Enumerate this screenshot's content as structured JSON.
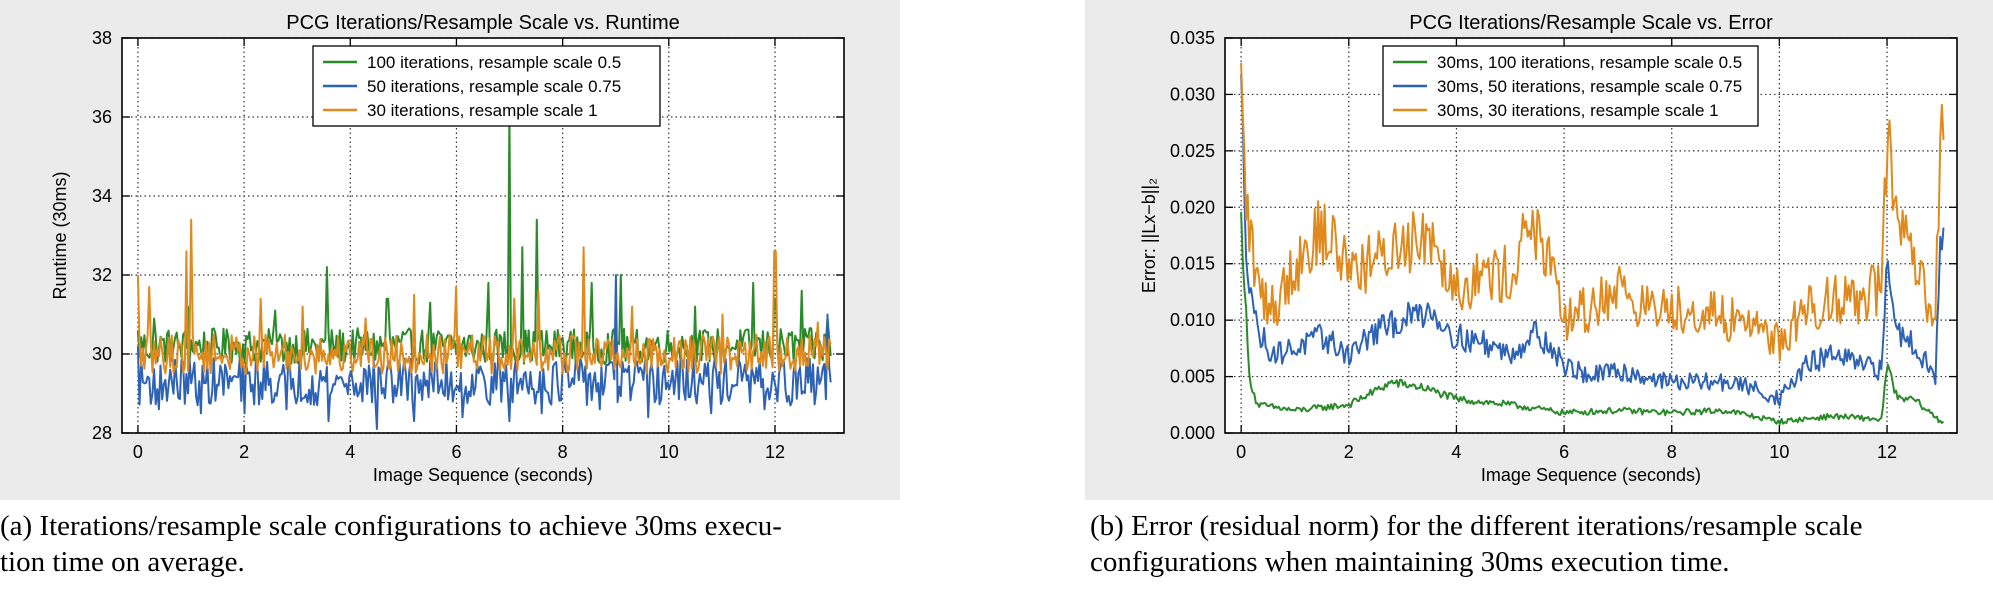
{
  "chart_data": [
    {
      "type": "line",
      "title": "PCG Iterations/Resample Scale vs. Runtime",
      "xlabel": "Image Sequence (seconds)",
      "ylabel": "Runtime (30ms)",
      "xlim": [
        -0.3,
        13.3
      ],
      "ylim": [
        28,
        38
      ],
      "xticks": [
        0,
        2,
        4,
        6,
        8,
        10,
        12
      ],
      "yticks": [
        28,
        30,
        32,
        34,
        36,
        38
      ],
      "grid": true,
      "legend": "top-center",
      "series": [
        {
          "name": "100 iterations, resample scale 0.5",
          "color": "#2a8a2a",
          "base": 30.2,
          "noise": 0.45,
          "x": [
            0,
            0.3,
            0.95,
            1.7,
            2.6,
            3.55,
            4.7,
            5.5,
            6.6,
            7.0,
            7.25,
            7.5,
            8.55,
            9.1,
            10.5,
            11.6,
            12.0,
            12.5,
            13.0
          ],
          "y": [
            30.6,
            30.9,
            31.2,
            30.4,
            31.1,
            32.2,
            31.4,
            31.3,
            31.8,
            36.1,
            32.7,
            33.4,
            31.8,
            32.0,
            31.2,
            31.8,
            31.4,
            31.6,
            30.9
          ]
        },
        {
          "name": "50 iterations, resample scale 0.75",
          "color": "#2d62b5",
          "base": 29.3,
          "noise": 0.6,
          "x": [
            0,
            0.4,
            1.2,
            2.0,
            2.8,
            3.6,
            4.5,
            5.2,
            6.1,
            7.0,
            7.6,
            8.7,
            9.0,
            9.6,
            10.8,
            11.8,
            12.3,
            13.0
          ],
          "y": [
            30.2,
            28.6,
            28.5,
            28.5,
            28.6,
            28.3,
            28.1,
            28.3,
            28.4,
            28.3,
            28.5,
            28.6,
            32.0,
            28.4,
            28.5,
            28.6,
            28.7,
            31.0
          ]
        },
        {
          "name": "30 iterations, resample scale 1",
          "color": "#e08a1e",
          "base": 30.0,
          "noise": 0.5,
          "x": [
            0,
            0.2,
            0.9,
            1.0,
            2.3,
            3.1,
            4.3,
            5.2,
            6.0,
            7.1,
            7.55,
            8.4,
            9.3,
            11.0,
            12.0,
            12.8
          ],
          "y": [
            32.0,
            31.7,
            32.6,
            33.4,
            31.4,
            31.2,
            30.9,
            31.5,
            31.7,
            31.4,
            31.6,
            32.7,
            31.2,
            31.0,
            32.6,
            30.8
          ]
        }
      ]
    },
    {
      "type": "line",
      "title": "PCG Iterations/Resample Scale vs. Error",
      "xlabel": "Image Sequence (seconds)",
      "ylabel": "Error: ||Lx−b||₂",
      "xlim": [
        -0.3,
        13.3
      ],
      "ylim": [
        0.0,
        0.035
      ],
      "xticks": [
        0,
        2,
        4,
        6,
        8,
        10,
        12
      ],
      "yticks": [
        0.0,
        0.005,
        0.01,
        0.015,
        0.02,
        0.025,
        0.03,
        0.035
      ],
      "ytick_format": 3,
      "grid": true,
      "legend": "top-center",
      "series": [
        {
          "name": "30ms, 100 iterations, resample scale 0.5",
          "color": "#2a8a2a",
          "noise": 0.0006,
          "x": [
            0,
            0.15,
            0.3,
            1.0,
            2.0,
            2.8,
            3.4,
            4.0,
            5.0,
            6.0,
            7.0,
            8.0,
            9.0,
            10.0,
            11.0,
            11.9,
            12.0,
            12.2,
            12.5,
            13.0
          ],
          "y": [
            0.019,
            0.005,
            0.0025,
            0.002,
            0.0025,
            0.0045,
            0.004,
            0.003,
            0.0025,
            0.0018,
            0.002,
            0.0018,
            0.002,
            0.001,
            0.0015,
            0.0012,
            0.006,
            0.003,
            0.003,
            0.001
          ]
        },
        {
          "name": "30ms, 50 iterations, resample scale 0.75",
          "color": "#2d62b5",
          "noise": 0.0012,
          "x": [
            0,
            0.1,
            0.3,
            0.6,
            1.0,
            1.5,
            2.0,
            2.5,
            3.0,
            3.5,
            4.0,
            4.5,
            5.0,
            5.5,
            6.0,
            6.5,
            7.0,
            7.5,
            8.0,
            8.5,
            9.0,
            9.5,
            10.0,
            10.5,
            11.0,
            11.5,
            11.9,
            12.0,
            12.2,
            12.5,
            12.9,
            13.0
          ],
          "y": [
            0.03,
            0.016,
            0.009,
            0.007,
            0.0075,
            0.0085,
            0.007,
            0.009,
            0.01,
            0.011,
            0.0085,
            0.008,
            0.007,
            0.009,
            0.006,
            0.005,
            0.0055,
            0.005,
            0.0045,
            0.0045,
            0.0045,
            0.004,
            0.003,
            0.006,
            0.007,
            0.006,
            0.0055,
            0.015,
            0.009,
            0.008,
            0.005,
            0.017
          ]
        },
        {
          "name": "30ms, 30 iterations, resample scale 1",
          "color": "#e08a1e",
          "noise": 0.0018,
          "x": [
            0,
            0.1,
            0.3,
            0.6,
            1.0,
            1.5,
            2.0,
            2.5,
            3.0,
            3.5,
            4.0,
            4.5,
            5.0,
            5.4,
            5.7,
            6.0,
            6.5,
            7.0,
            7.5,
            8.0,
            8.5,
            9.0,
            9.5,
            10.0,
            10.5,
            11.0,
            11.5,
            11.9,
            12.0,
            12.2,
            12.5,
            12.9,
            13.0
          ],
          "y": [
            0.03,
            0.02,
            0.013,
            0.011,
            0.015,
            0.018,
            0.015,
            0.015,
            0.017,
            0.018,
            0.013,
            0.014,
            0.014,
            0.019,
            0.015,
            0.01,
            0.011,
            0.013,
            0.011,
            0.011,
            0.011,
            0.01,
            0.01,
            0.008,
            0.011,
            0.012,
            0.012,
            0.013,
            0.026,
            0.018,
            0.015,
            0.009,
            0.0305
          ]
        }
      ]
    }
  ],
  "captions": [
    {
      "label": "(a)",
      "line1": "Iterations/resample scale configurations to achieve 30ms execu-",
      "line2": "tion time on average."
    },
    {
      "label": "(b)",
      "line1": "Error (residual norm) for the different iterations/resample scale",
      "line2": "configurations when maintaining 30ms execution time."
    }
  ]
}
